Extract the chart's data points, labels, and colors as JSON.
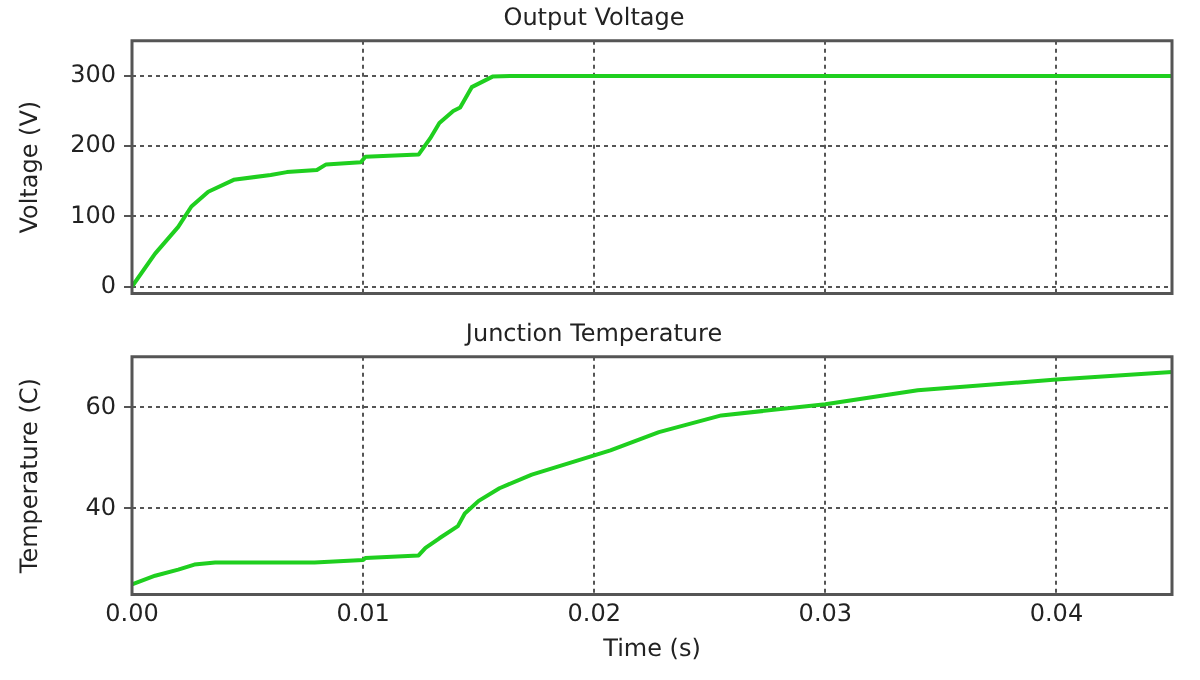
{
  "chart_data": [
    {
      "type": "line",
      "title": "Output Voltage",
      "ylabel": "Voltage (V)",
      "color": "#1fcf1f",
      "x": [
        0,
        0.001,
        0.002,
        0.00257,
        0.0033,
        0.0044,
        0.006,
        0.0067,
        0.008,
        0.0084,
        0.0099,
        0.0101,
        0.0124,
        0.0129,
        0.0133,
        0.0139,
        0.0142,
        0.0147,
        0.0156,
        0.0164,
        0.02,
        0.03,
        0.04,
        0.045
      ],
      "values": [
        0,
        47,
        85,
        114,
        135,
        152,
        159,
        163,
        166,
        174,
        177,
        185,
        188,
        211,
        233,
        250,
        255,
        284,
        299,
        300,
        300,
        300,
        300,
        300
      ],
      "xlim": [
        0,
        0.045
      ],
      "xticks": [
        {
          "value": 0,
          "label": null
        },
        {
          "value": 0.01,
          "label": null
        },
        {
          "value": 0.02,
          "label": null
        },
        {
          "value": 0.03,
          "label": null
        },
        {
          "value": 0.04,
          "label": null
        }
      ],
      "ylim": [
        -10,
        350
      ],
      "yticks": [
        0,
        100,
        200,
        300
      ],
      "grid": true,
      "marker": "none",
      "line_style": "solid",
      "tick_labels": "y"
    },
    {
      "type": "line",
      "title": "Junction Temperature",
      "xlabel": "Time (s)",
      "ylabel": "Temperature (C)",
      "color": "#1fcf1f",
      "x": [
        0,
        0.001,
        0.002,
        0.0027,
        0.0036,
        0.0079,
        0.01,
        0.0101,
        0.0124,
        0.0127,
        0.0133,
        0.0141,
        0.0144,
        0.015,
        0.0159,
        0.0173,
        0.0193,
        0.0207,
        0.0228,
        0.0255,
        0.03,
        0.034,
        0.04,
        0.045
      ],
      "values": [
        25,
        26.7,
        27.9,
        28.9,
        29.3,
        29.3,
        29.8,
        30.2,
        30.7,
        32.2,
        34.1,
        36.5,
        39,
        41.5,
        44,
        46.7,
        49.5,
        51.5,
        55.1,
        58.4,
        60.6,
        63.4,
        65.5,
        67
      ],
      "xlim": [
        0,
        0.045
      ],
      "xticks": [
        {
          "value": 0,
          "label": "0.00"
        },
        {
          "value": 0.01,
          "label": "0.01"
        },
        {
          "value": 0.02,
          "label": "0.02"
        },
        {
          "value": 0.03,
          "label": "0.03"
        },
        {
          "value": 0.04,
          "label": "0.04"
        }
      ],
      "ylim": [
        23,
        70
      ],
      "yticks": [
        40,
        60
      ],
      "grid": true,
      "marker": "none",
      "line_style": "solid"
    }
  ]
}
